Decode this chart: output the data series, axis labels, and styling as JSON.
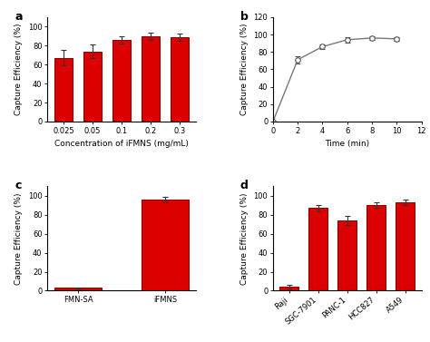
{
  "panel_a": {
    "x_labels": [
      "0.025",
      "0.05",
      "0.1",
      "0.2",
      "0.3"
    ],
    "values": [
      67,
      74,
      86,
      90,
      89
    ],
    "errors": [
      8,
      7,
      4,
      4,
      4
    ],
    "xlabel": "Concentration of iFMNS (mg/mL)",
    "ylabel": "Capture Efficiency (%)",
    "ylim": [
      0,
      110
    ],
    "yticks": [
      0,
      20,
      40,
      60,
      80,
      100
    ],
    "bar_color": "#dd0000",
    "bar_edge": "#880000"
  },
  "panel_b": {
    "x": [
      0,
      2,
      4,
      6,
      8,
      10
    ],
    "values": [
      0,
      71,
      86,
      94,
      96,
      95
    ],
    "errors": [
      0,
      4,
      3,
      3,
      2,
      2
    ],
    "xlabel": "Time (min)",
    "ylabel": "Capture Efficiency (%)",
    "xlim": [
      0,
      12
    ],
    "ylim": [
      0,
      120
    ],
    "yticks": [
      0,
      20,
      40,
      60,
      80,
      100,
      120
    ],
    "xticks": [
      0,
      2,
      4,
      6,
      8,
      10,
      12
    ],
    "line_color": "#777777",
    "marker_face": "white",
    "marker_edge": "#555555"
  },
  "panel_c": {
    "x_labels": [
      "FMN-SA",
      "iFMNS"
    ],
    "values": [
      3,
      96
    ],
    "errors": [
      0.5,
      3
    ],
    "ylabel": "Capture Efficiency (%)",
    "ylim": [
      0,
      110
    ],
    "yticks": [
      0,
      20,
      40,
      60,
      80,
      100
    ],
    "bar_color": "#dd0000",
    "bar_edge": "#880000"
  },
  "panel_d": {
    "x_labels": [
      "Raji",
      "SGC-7901",
      "PANC-1",
      "HCC827",
      "A549"
    ],
    "values": [
      4,
      87,
      74,
      90,
      93
    ],
    "errors": [
      2,
      3,
      5,
      3,
      3
    ],
    "ylabel": "Capture Efficiency (%)",
    "ylim": [
      0,
      110
    ],
    "yticks": [
      0,
      20,
      40,
      60,
      80,
      100
    ],
    "bar_color": "#dd0000",
    "bar_edge": "#880000"
  },
  "label_fontsize": 6.5,
  "tick_fontsize": 6,
  "panel_label_fontsize": 9
}
